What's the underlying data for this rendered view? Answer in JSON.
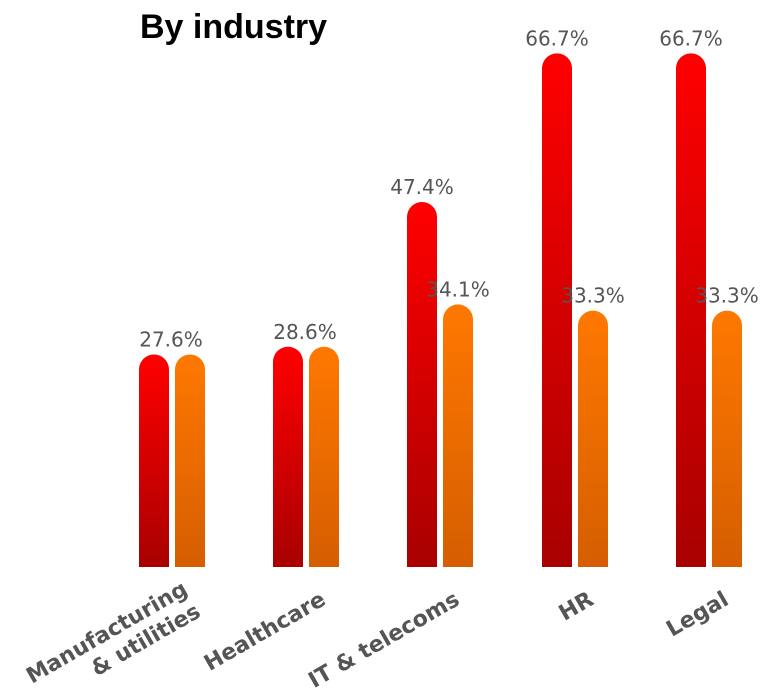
{
  "chart_data": {
    "type": "bar",
    "title": "By industry",
    "categories": [
      "Manufacturing\n& utilities",
      "Healthcare",
      "IT & telecoms",
      "HR",
      "Legal"
    ],
    "series": [
      {
        "values": [
          27.6,
          28.6,
          47.4,
          66.7,
          66.7
        ],
        "color": "#e00000"
      },
      {
        "values": [
          27.6,
          28.6,
          34.1,
          33.3,
          33.3
        ],
        "color": "#ff7a00"
      }
    ],
    "data_labels": [
      [
        "",
        "",
        "47.4%",
        "66.7%",
        "66.7%"
      ],
      [
        "27.6%",
        "28.6%",
        "34.1%",
        "33.3%",
        "33.3%"
      ]
    ],
    "ylim": [
      0,
      70
    ],
    "grid": false,
    "legend": "none"
  }
}
